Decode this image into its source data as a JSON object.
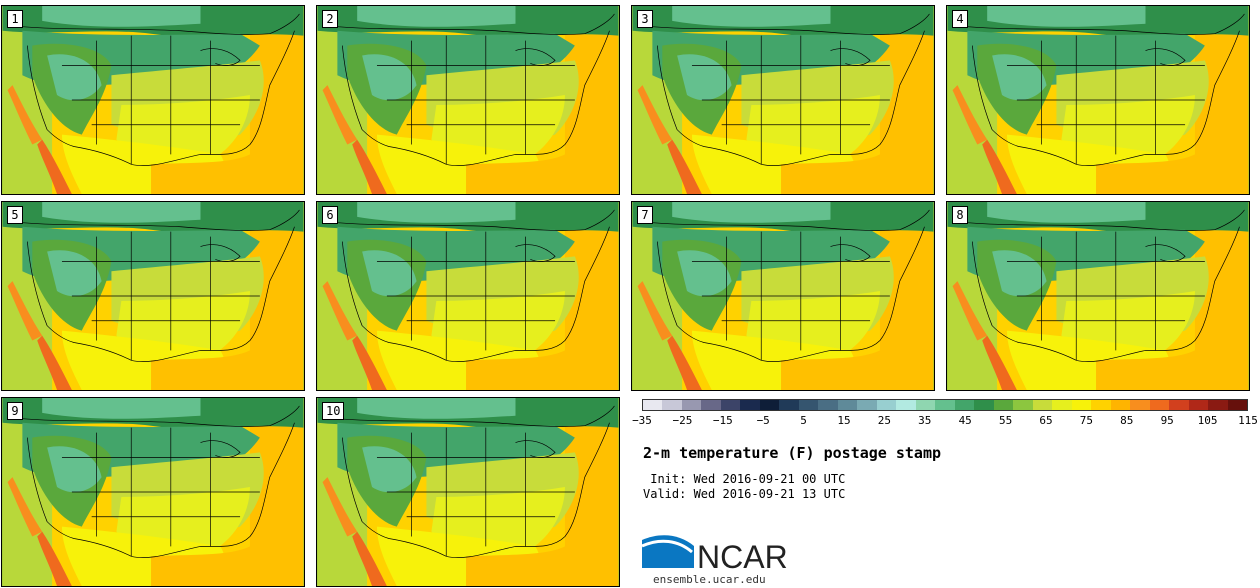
{
  "panels": [
    {
      "label": "1"
    },
    {
      "label": "2"
    },
    {
      "label": "3"
    },
    {
      "label": "4"
    },
    {
      "label": "5"
    },
    {
      "label": "6"
    },
    {
      "label": "7"
    },
    {
      "label": "8"
    },
    {
      "label": "9"
    },
    {
      "label": "10"
    }
  ],
  "colorbar": {
    "colors": [
      "#e8e8f0",
      "#c8c8d8",
      "#9898b0",
      "#686888",
      "#3c4468",
      "#1a2a4e",
      "#0e1e38",
      "#203a58",
      "#35556f",
      "#4a6e84",
      "#5f8a99",
      "#7aaab3",
      "#98cfd0",
      "#b2eae1",
      "#8fd6b0",
      "#64c08e",
      "#43a56a",
      "#2f8f4a",
      "#5aa83c",
      "#8cc63f",
      "#c8dc3a",
      "#e6ef1e",
      "#f7f20a",
      "#ffd200",
      "#ffb400",
      "#f88e1e",
      "#ef6a1e",
      "#d2401e",
      "#b02818",
      "#8a1a12",
      "#66100c"
    ],
    "tick_labels": [
      "−35",
      "−25",
      "−15",
      "−5",
      "5",
      "15",
      "25",
      "35",
      "45",
      "55",
      "65",
      "75",
      "85",
      "95",
      "105",
      "115"
    ]
  },
  "title": "2-m temperature (F) postage stamp",
  "init": " Init: Wed 2016-09-21 00 UTC",
  "valid": "Valid: Wed 2016-09-21 13 UTC",
  "logo": {
    "text": "NCAR",
    "url": "ensemble.ucar.edu"
  }
}
